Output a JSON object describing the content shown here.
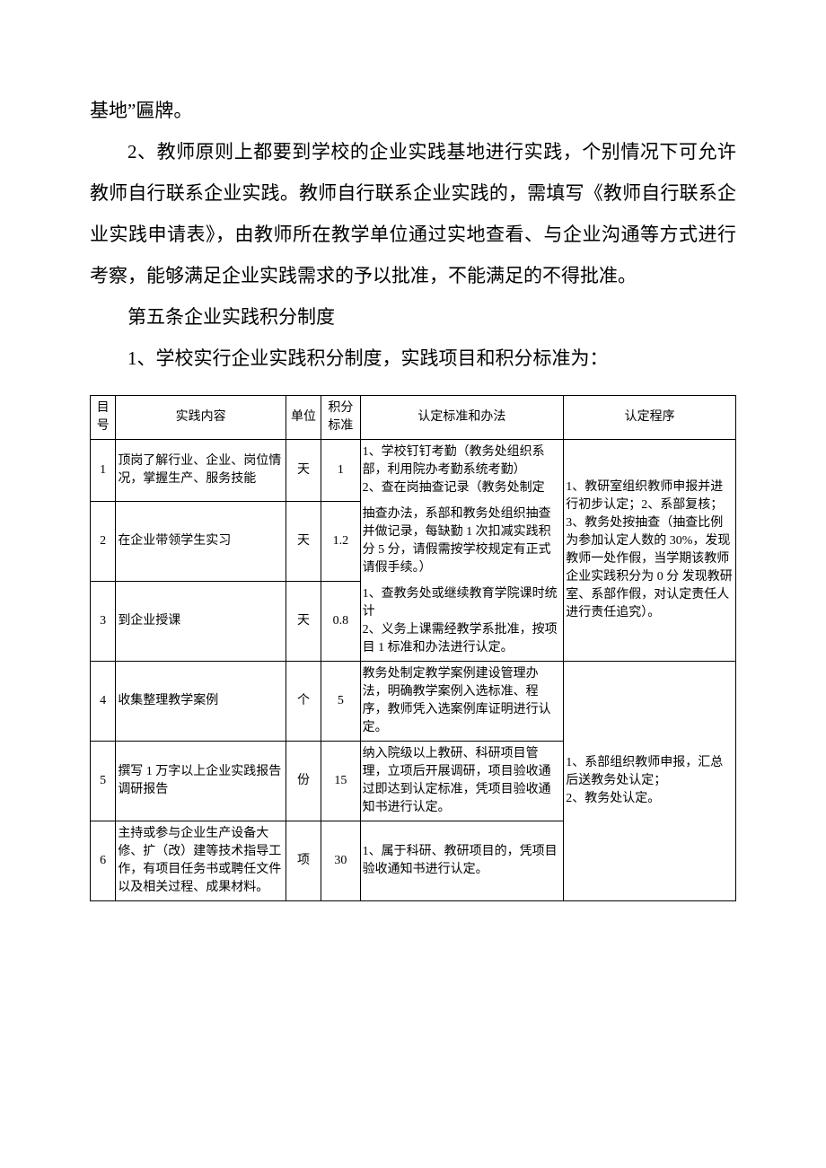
{
  "paragraphs": {
    "p1": "基地”匾牌。",
    "p2": "2、教师原则上都要到学校的企业实践基地进行实践，个别情况下可允许教师自行联系企业实践。教师自行联系企业实践的，需填写《教师自行联系企业实践申请表》，由教师所在教学单位通过实地查看、与企业沟通等方式进行考察，能够满足企业实践需求的予以批准，不能满足的不得批准。",
    "p3": "第五条企业实践积分制度",
    "p4": "1、学校实行企业实践积分制度，实践项目和积分标准为："
  },
  "table": {
    "head": {
      "c0": "目号",
      "c1": "实践内容",
      "c2": "单位",
      "c3": "积分标准",
      "c4": "认定标准和办法",
      "c5": "认定程序"
    },
    "rows": {
      "r1": {
        "idx": "1",
        "content": "顶岗了解行业、企业、岗位情况，掌握生产、服务技能",
        "unit": "天",
        "score": "1",
        "std": "1、学校钉钉考勤（教务处组织系部，利用院办考勤系统考勤）\n2、查在岗抽查记录（教务处制定"
      },
      "r2": {
        "idx": "2",
        "content": "在企业带领学生实习",
        "unit": "天",
        "score": "1.2",
        "std": "抽查办法，系部和教务处组织抽查并做记录，每缺勤 1 次扣减实践积分 5 分，请假需按学校规定有正式请假手续。）"
      },
      "r3": {
        "idx": "3",
        "content": "到企业授课",
        "unit": "天",
        "score": "0.8",
        "std": "1、查教务处或继续教育学院课时统计\n2、义务上课需经教学系批准，按项目 1 标准和办法进行认定。"
      },
      "r4": {
        "idx": "4",
        "content": "收集整理教学案例",
        "unit": "个",
        "score": "5",
        "std": "教务处制定教学案例建设管理办法，明确教学案例入选标准、程序，教师凭入选案例库证明进行认定。"
      },
      "r5": {
        "idx": "5",
        "content": "撰写 1 万字以上企业实践报告调研报告",
        "unit": "份",
        "score": "15",
        "std": "纳入院级以上教研、科研项目管理，立项后开展调研，项目验收通过即达到认定标准，凭项目验收通知书进行认定。"
      },
      "r6": {
        "idx": "6",
        "content": "主持或参与企业生产设备大修、扩（改）建等技术指导工作，有项目任务书或聘任文件以及相关过程、成果材料。",
        "unit": "项",
        "score": "30",
        "std": "1、属于科研、教研项目的，凭项目验收通知书进行认定。"
      }
    },
    "proc": {
      "g1": "1、教研室组织教师申报并进行初步认定；2、系部复核；\n3、教务处按抽查（抽查比例为参加认定人数的 30%，发现教师一处作假，当学期该教师企业实践积分为 0 分 发现教研室、系部作假，对认定责任人进行责任追究）。",
      "g2": "1、系部组织教师申报，汇总后送教务处认定；\n2、教务处认定。"
    }
  }
}
